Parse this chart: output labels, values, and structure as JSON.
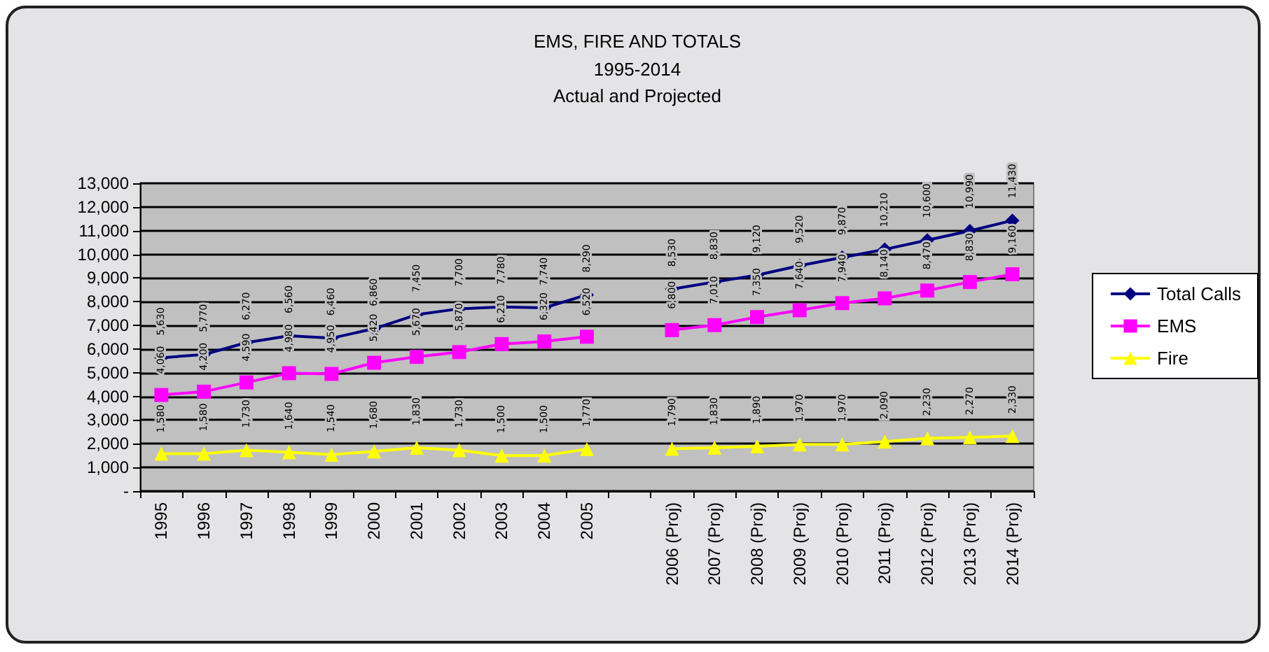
{
  "chart_data": {
    "type": "line",
    "title": "EMS, FIRE AND TOTALS",
    "subtitle": "1995-2014\nActual and Projected",
    "categories": [
      "1995",
      "1996",
      "1997",
      "1998",
      "1999",
      "2000",
      "2001",
      "2002",
      "2003",
      "2004",
      "2005",
      null,
      "2006 (Proj)",
      "2007 (Proj)",
      "2008 (Proj)",
      "2009 (Proj)",
      "2010 (Proj)",
      "2011 (Proj)",
      "2012 (Proj)",
      "2013 (Proj)",
      "2014 (Proj)"
    ],
    "series": [
      {
        "name": "Total Calls",
        "color": "#000080",
        "marker": "diamond",
        "values": [
          5630,
          5770,
          6270,
          6560,
          6460,
          6860,
          7450,
          7700,
          7780,
          7740,
          8290,
          null,
          8530,
          8830,
          9120,
          9520,
          9870,
          10210,
          10600,
          10990,
          11430
        ],
        "value_labels": [
          "5,630",
          "5,770",
          "6,270",
          "6,560",
          "6,460",
          "6,860",
          "7,450",
          "7,700",
          "7,780",
          "7,740",
          "8,290",
          null,
          "8,530",
          "8,830",
          "9,120",
          "9,520",
          "9,870",
          "10,210",
          "10,600",
          "10,990",
          "11,430"
        ]
      },
      {
        "name": "EMS",
        "color": "#ff00ff",
        "marker": "square",
        "values": [
          4060,
          4200,
          4590,
          4980,
          4950,
          5420,
          5670,
          5870,
          6210,
          6320,
          6520,
          null,
          6800,
          7010,
          7350,
          7640,
          7940,
          8140,
          8470,
          8830,
          9160
        ],
        "value_labels": [
          "4,060",
          "4,200",
          "4,590",
          "4,980",
          "4,950",
          "5,420",
          "5,670",
          "5,870",
          "6,210",
          "6,320",
          "6,520",
          null,
          "6,800",
          "7,010",
          "7,350",
          "7,640",
          "7,940",
          "8,140",
          "8,470",
          "8,830",
          "9,160"
        ]
      },
      {
        "name": "Fire",
        "color": "#ffff00",
        "marker": "triangle",
        "values": [
          1580,
          1580,
          1730,
          1640,
          1540,
          1680,
          1830,
          1730,
          1500,
          1500,
          1770,
          null,
          1790,
          1830,
          1890,
          1970,
          1970,
          2090,
          2230,
          2270,
          2330
        ],
        "value_labels": [
          "1,580",
          "1,580",
          "1,730",
          "1,640",
          "1,540",
          "1,680",
          "1,830",
          "1,730",
          "1,500",
          "1,500",
          "1,770",
          null,
          "1,790",
          "1,830",
          "1,890",
          "1,970",
          "1,970",
          "2,090",
          "2,230",
          "2,270",
          "2,330"
        ]
      }
    ],
    "ylim": [
      0,
      13000
    ],
    "yticks": [
      {
        "value": 0,
        "label": "-"
      },
      {
        "value": 1000,
        "label": "1,000"
      },
      {
        "value": 2000,
        "label": "2,000"
      },
      {
        "value": 3000,
        "label": "3,000"
      },
      {
        "value": 4000,
        "label": "4,000"
      },
      {
        "value": 5000,
        "label": "5,000"
      },
      {
        "value": 6000,
        "label": "6,000"
      },
      {
        "value": 7000,
        "label": "7,000"
      },
      {
        "value": 8000,
        "label": "8,000"
      },
      {
        "value": 9000,
        "label": "9,000"
      },
      {
        "value": 10000,
        "label": "10,000"
      },
      {
        "value": 11000,
        "label": "11,000"
      },
      {
        "value": 12000,
        "label": "12,000"
      },
      {
        "value": 13000,
        "label": "13,000"
      }
    ],
    "grid": "y",
    "legend": "right",
    "line_style": "solid"
  }
}
